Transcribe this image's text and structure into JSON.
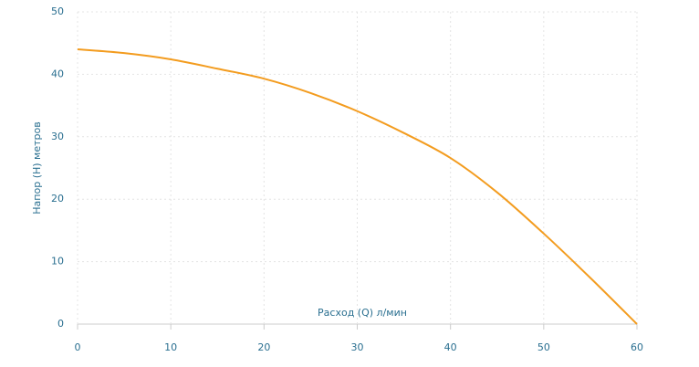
{
  "chart_data": {
    "type": "line",
    "x_label": "Расход (Q) л/мин",
    "y_label": "Напор (H) метров",
    "x": [
      0,
      5,
      10,
      15,
      20,
      25,
      30,
      35,
      40,
      45,
      50,
      55,
      60
    ],
    "series": [
      {
        "name": "H",
        "color": "#f39c1f",
        "values": [
          44,
          43.4,
          42.4,
          40.9,
          39.3,
          37.0,
          34.1,
          30.6,
          26.6,
          21.1,
          14.5,
          7.4,
          0
        ]
      }
    ],
    "xlim": [
      0,
      60
    ],
    "xticks": [
      0,
      10,
      20,
      30,
      40,
      50,
      60
    ],
    "ylim": [
      0,
      50
    ],
    "yticks": [
      0,
      10,
      20,
      30,
      40,
      50
    ],
    "grid": true
  }
}
